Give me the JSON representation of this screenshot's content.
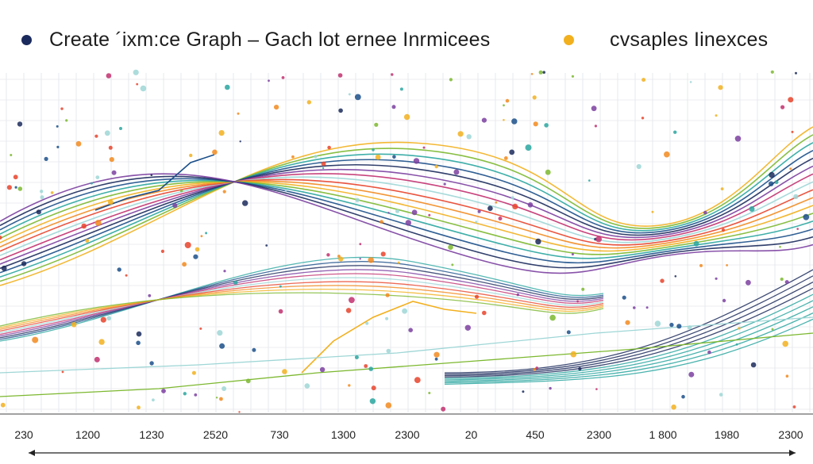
{
  "chart_data": {
    "type": "line",
    "legend": {
      "placement": "top",
      "entries": [
        {
          "label": "Create ´ixm:ce  Graph – Gach lot  ernee Inrmicees",
          "color": "#1b2a5c"
        },
        {
          "label": "cvsaples Iinexces",
          "color": "#f2b01e"
        }
      ]
    },
    "x_tick_labels": [
      "230",
      "1200",
      "1230",
      "2520",
      "730",
      "1300",
      "2300",
      "20",
      "450",
      "2300",
      "1 800",
      "1980",
      "2300"
    ],
    "grid": true,
    "series_colors": [
      "#e8432b",
      "#f28a1f",
      "#f2b01e",
      "#7cb82f",
      "#2aa6a0",
      "#1b4f8a",
      "#1b2a5c",
      "#7b3fa0",
      "#c2306f",
      "#9fd6d6"
    ]
  }
}
